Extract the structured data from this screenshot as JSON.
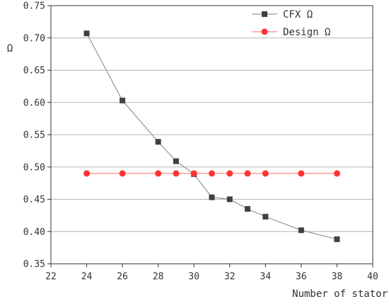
{
  "chart_data": {
    "type": "line",
    "xlabel": "Number of stator",
    "ylabel": "Ω",
    "xlim": [
      22,
      40
    ],
    "ylim": [
      0.35,
      0.75
    ],
    "x_ticks": [
      "22",
      "24",
      "26",
      "28",
      "30",
      "32",
      "34",
      "36",
      "38",
      "40"
    ],
    "y_ticks": [
      "0.35",
      "0.40",
      "0.45",
      "0.50",
      "0.55",
      "0.60",
      "0.65",
      "0.70",
      "0.75"
    ],
    "grid": "horizontal",
    "legend_position": "top-right",
    "series": [
      {
        "name": "CFX Ω",
        "marker": "square",
        "color": "#404040",
        "line_color": "#808080",
        "x": [
          24,
          26,
          28,
          29,
          30,
          31,
          32,
          33,
          34,
          36,
          38
        ],
        "y": [
          0.707,
          0.603,
          0.539,
          0.509,
          0.489,
          0.453,
          0.45,
          0.435,
          0.423,
          0.402,
          0.388
        ]
      },
      {
        "name": "Design Ω",
        "marker": "circle",
        "color": "#ff3333",
        "line_color": "#ff6666",
        "x": [
          24,
          26,
          28,
          29,
          30,
          31,
          32,
          33,
          34,
          36,
          38
        ],
        "y": [
          0.49,
          0.49,
          0.49,
          0.49,
          0.49,
          0.49,
          0.49,
          0.49,
          0.49,
          0.49,
          0.49
        ]
      }
    ]
  }
}
